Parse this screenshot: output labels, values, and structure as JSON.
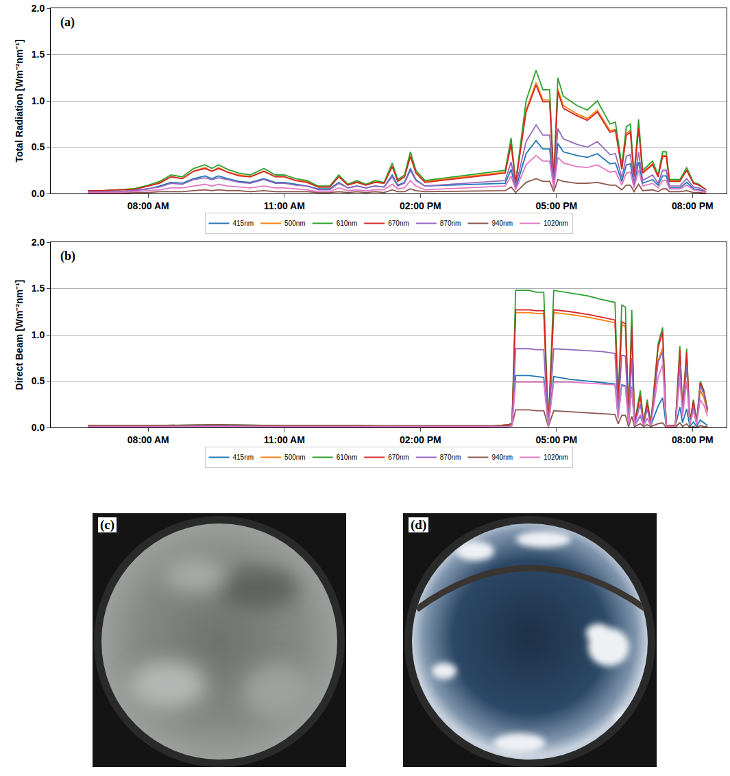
{
  "chart_data": [
    {
      "type": "line",
      "panel_label": "(a)",
      "y_label": "Total Radiation [Wm⁻²nm⁻¹]",
      "xlim": [
        5.85,
        20.75
      ],
      "ylim": [
        0,
        2
      ],
      "xticks": [
        {
          "value": 8,
          "label": "08:00 AM"
        },
        {
          "value": 11,
          "label": "11:00 AM"
        },
        {
          "value": 14,
          "label": "02:00 PM"
        },
        {
          "value": 17,
          "label": "05:00 PM"
        },
        {
          "value": 20,
          "label": "08:00 PM"
        }
      ],
      "yticks": [
        {
          "value": 0,
          "label": "0.0"
        },
        0.5,
        {
          "value": 1,
          "label": "1.0"
        },
        1.5,
        {
          "value": 2,
          "label": "2.0"
        }
      ],
      "grid": "y",
      "legend": "bottom",
      "x": [
        6.67,
        7.0,
        7.33,
        7.67,
        8.0,
        8.25,
        8.5,
        8.75,
        9.0,
        9.25,
        9.4,
        9.55,
        9.75,
        10.0,
        10.25,
        10.55,
        10.8,
        11.0,
        11.25,
        11.5,
        11.75,
        12.0,
        12.2,
        12.4,
        12.6,
        12.8,
        13.0,
        13.2,
        13.38,
        13.5,
        13.65,
        13.78,
        13.9,
        14.1,
        15.87,
        16.0,
        16.1,
        16.33,
        16.55,
        16.7,
        16.85,
        16.94,
        17.03,
        17.15,
        17.45,
        17.68,
        17.9,
        18.18,
        18.3,
        18.44,
        18.54,
        18.63,
        18.71,
        18.81,
        18.9,
        19.12,
        19.24,
        19.34,
        19.42,
        19.49,
        19.72,
        19.87,
        20.02,
        20.14,
        20.3
      ],
      "series": [
        {
          "name": "415nm",
          "color": "#1f77b4",
          "values": [
            0.02,
            0.02,
            0.02,
            0.03,
            0.05,
            0.08,
            0.12,
            0.11,
            0.16,
            0.19,
            0.16,
            0.19,
            0.16,
            0.13,
            0.12,
            0.16,
            0.12,
            0.12,
            0.1,
            0.08,
            0.05,
            0.05,
            0.12,
            0.06,
            0.08,
            0.06,
            0.08,
            0.07,
            0.2,
            0.09,
            0.12,
            0.27,
            0.15,
            0.08,
            0.11,
            0.26,
            0.05,
            0.43,
            0.57,
            0.48,
            0.48,
            0.06,
            0.54,
            0.45,
            0.41,
            0.39,
            0.43,
            0.32,
            0.33,
            0.13,
            0.31,
            0.32,
            0.09,
            0.34,
            0.11,
            0.15,
            0.09,
            0.19,
            0.19,
            0.06,
            0.06,
            0.12,
            0.05,
            0.04,
            0.02
          ]
        },
        {
          "name": "500nm",
          "color": "#ff7f0e",
          "values": [
            0.03,
            0.03,
            0.04,
            0.05,
            0.08,
            0.12,
            0.18,
            0.16,
            0.24,
            0.28,
            0.24,
            0.28,
            0.23,
            0.2,
            0.18,
            0.24,
            0.18,
            0.18,
            0.14,
            0.13,
            0.07,
            0.07,
            0.18,
            0.09,
            0.13,
            0.09,
            0.13,
            0.11,
            0.3,
            0.14,
            0.18,
            0.41,
            0.23,
            0.13,
            0.23,
            0.54,
            0.11,
            0.9,
            1.2,
            1.01,
            1.01,
            0.14,
            1.13,
            0.95,
            0.86,
            0.81,
            0.9,
            0.68,
            0.69,
            0.27,
            0.65,
            0.68,
            0.18,
            0.72,
            0.23,
            0.32,
            0.18,
            0.41,
            0.41,
            0.14,
            0.14,
            0.25,
            0.11,
            0.09,
            0.04
          ]
        },
        {
          "name": "610nm",
          "color": "#2ca02c",
          "values": [
            0.03,
            0.03,
            0.04,
            0.05,
            0.09,
            0.13,
            0.2,
            0.18,
            0.27,
            0.31,
            0.27,
            0.31,
            0.26,
            0.22,
            0.2,
            0.27,
            0.2,
            0.2,
            0.16,
            0.14,
            0.08,
            0.08,
            0.2,
            0.1,
            0.14,
            0.1,
            0.14,
            0.12,
            0.33,
            0.15,
            0.2,
            0.45,
            0.25,
            0.14,
            0.25,
            0.6,
            0.12,
            1.0,
            1.33,
            1.12,
            1.12,
            0.15,
            1.25,
            1.05,
            0.95,
            0.9,
            1.0,
            0.75,
            0.77,
            0.3,
            0.72,
            0.75,
            0.2,
            0.8,
            0.25,
            0.35,
            0.2,
            0.45,
            0.45,
            0.15,
            0.15,
            0.28,
            0.12,
            0.1,
            0.04
          ]
        },
        {
          "name": "670nm",
          "color": "#d62728",
          "values": [
            0.03,
            0.03,
            0.04,
            0.04,
            0.08,
            0.11,
            0.18,
            0.16,
            0.24,
            0.27,
            0.24,
            0.27,
            0.23,
            0.19,
            0.18,
            0.24,
            0.18,
            0.18,
            0.14,
            0.12,
            0.07,
            0.07,
            0.18,
            0.09,
            0.12,
            0.09,
            0.12,
            0.11,
            0.29,
            0.13,
            0.18,
            0.4,
            0.22,
            0.12,
            0.22,
            0.53,
            0.11,
            0.88,
            1.17,
            0.99,
            0.99,
            0.13,
            1.1,
            0.92,
            0.84,
            0.79,
            0.88,
            0.66,
            0.68,
            0.26,
            0.63,
            0.66,
            0.18,
            0.7,
            0.22,
            0.31,
            0.18,
            0.4,
            0.4,
            0.13,
            0.13,
            0.25,
            0.11,
            0.09,
            0.04
          ]
        },
        {
          "name": "870nm",
          "color": "#9467bd",
          "values": [
            0.02,
            0.02,
            0.02,
            0.03,
            0.05,
            0.07,
            0.11,
            0.1,
            0.15,
            0.17,
            0.15,
            0.17,
            0.15,
            0.12,
            0.11,
            0.15,
            0.11,
            0.11,
            0.09,
            0.08,
            0.04,
            0.04,
            0.11,
            0.06,
            0.08,
            0.06,
            0.08,
            0.07,
            0.18,
            0.08,
            0.11,
            0.25,
            0.14,
            0.08,
            0.14,
            0.34,
            0.07,
            0.56,
            0.74,
            0.63,
            0.63,
            0.08,
            0.7,
            0.59,
            0.53,
            0.5,
            0.56,
            0.42,
            0.43,
            0.17,
            0.4,
            0.42,
            0.11,
            0.45,
            0.14,
            0.2,
            0.11,
            0.25,
            0.25,
            0.08,
            0.08,
            0.16,
            0.07,
            0.06,
            0.02
          ]
        },
        {
          "name": "940nm",
          "color": "#8c564b",
          "values": [
            0,
            0,
            0,
            0.01,
            0.01,
            0.02,
            0.02,
            0.02,
            0.03,
            0.04,
            0.03,
            0.04,
            0.03,
            0.03,
            0.02,
            0.03,
            0.02,
            0.02,
            0.02,
            0.02,
            0.01,
            0.01,
            0.02,
            0.01,
            0.02,
            0.01,
            0.02,
            0.01,
            0.04,
            0.02,
            0.02,
            0.05,
            0.03,
            0.02,
            0.03,
            0.07,
            0.01,
            0.12,
            0.16,
            0.13,
            0.13,
            0.02,
            0.15,
            0.13,
            0.11,
            0.11,
            0.12,
            0.09,
            0.09,
            0.04,
            0.09,
            0.09,
            0.02,
            0.1,
            0.03,
            0.04,
            0.02,
            0.05,
            0.05,
            0.02,
            0.02,
            0.03,
            0.01,
            0.01,
            0
          ]
        },
        {
          "name": "1020nm",
          "color": "#e377c2",
          "values": [
            0.01,
            0.01,
            0.01,
            0.02,
            0.03,
            0.04,
            0.06,
            0.06,
            0.08,
            0.1,
            0.08,
            0.1,
            0.08,
            0.07,
            0.06,
            0.08,
            0.06,
            0.06,
            0.05,
            0.04,
            0.02,
            0.02,
            0.06,
            0.03,
            0.04,
            0.03,
            0.04,
            0.04,
            0.1,
            0.05,
            0.06,
            0.14,
            0.08,
            0.04,
            0.08,
            0.19,
            0.04,
            0.31,
            0.41,
            0.35,
            0.35,
            0.05,
            0.39,
            0.33,
            0.29,
            0.28,
            0.31,
            0.23,
            0.24,
            0.09,
            0.22,
            0.23,
            0.06,
            0.25,
            0.08,
            0.11,
            0.06,
            0.14,
            0.14,
            0.05,
            0.05,
            0.09,
            0.04,
            0.03,
            0.01
          ]
        }
      ]
    },
    {
      "type": "line",
      "panel_label": "(b)",
      "y_label": "Direct Beam [Wm⁻²nm⁻¹]",
      "xlim": [
        5.85,
        20.75
      ],
      "ylim": [
        0,
        2
      ],
      "xticks": [
        {
          "value": 8,
          "label": "08:00 AM"
        },
        {
          "value": 11,
          "label": "11:00 AM"
        },
        {
          "value": 14,
          "label": "02:00 PM"
        },
        {
          "value": 17,
          "label": "05:00 PM"
        },
        {
          "value": 20,
          "label": "08:00 PM"
        }
      ],
      "yticks": [
        {
          "value": 0,
          "label": "0.0"
        },
        0.5,
        {
          "value": 1,
          "label": "1.0"
        },
        1.5,
        {
          "value": 2,
          "label": "2.0"
        }
      ],
      "grid": "y",
      "legend": "bottom",
      "x": [
        6.67,
        8.0,
        9.5,
        11.0,
        12.5,
        14.0,
        15.5,
        15.95,
        16.02,
        16.1,
        16.4,
        16.55,
        16.72,
        16.82,
        16.94,
        17.3,
        17.7,
        18.0,
        18.29,
        18.36,
        18.44,
        18.52,
        18.59,
        18.66,
        18.72,
        18.85,
        18.92,
        19.0,
        19.08,
        19.24,
        19.34,
        19.42,
        19.62,
        19.72,
        19.78,
        19.87,
        19.94,
        20.02,
        20.09,
        20.17,
        20.25,
        20.33
      ],
      "series": [
        {
          "name": "415nm",
          "color": "#1f77b4",
          "values": [
            0.01,
            0.01,
            0.01,
            0.01,
            0.01,
            0.01,
            0.01,
            0.01,
            0.02,
            0.56,
            0.56,
            0.55,
            0.54,
            0.01,
            0.55,
            0.52,
            0.5,
            0.48,
            0.47,
            0.1,
            0.46,
            0.45,
            0.04,
            0.44,
            0.02,
            0.12,
            0.02,
            0.1,
            0.02,
            0.23,
            0.32,
            0.01,
            0.01,
            0.22,
            0.05,
            0.2,
            0.01,
            0.06,
            0.01,
            0.08,
            0.05,
            0.02
          ]
        },
        {
          "name": "500nm",
          "color": "#ff7f0e",
          "values": [
            0.02,
            0.02,
            0.02,
            0.02,
            0.02,
            0.01,
            0.01,
            0.03,
            0.04,
            1.24,
            1.24,
            1.23,
            1.23,
            0.02,
            1.24,
            1.22,
            1.19,
            1.16,
            1.13,
            0.25,
            1.11,
            1.09,
            0.08,
            1.07,
            0.04,
            0.34,
            0.04,
            0.25,
            0.04,
            0.72,
            0.86,
            0.02,
            0.02,
            0.7,
            0.16,
            0.68,
            0.04,
            0.24,
            0.04,
            0.4,
            0.32,
            0.16
          ]
        },
        {
          "name": "610nm",
          "color": "#2ca02c",
          "values": [
            0.02,
            0.02,
            0.03,
            0.02,
            0.02,
            0.01,
            0.01,
            0.03,
            0.05,
            1.48,
            1.48,
            1.46,
            1.46,
            0.02,
            1.48,
            1.45,
            1.42,
            1.38,
            1.35,
            0.3,
            1.32,
            1.3,
            0.1,
            1.27,
            0.05,
            0.4,
            0.05,
            0.3,
            0.05,
            0.9,
            1.08,
            0.02,
            0.02,
            0.88,
            0.2,
            0.85,
            0.05,
            0.3,
            0.05,
            0.5,
            0.4,
            0.2
          ]
        },
        {
          "name": "670nm",
          "color": "#d62728",
          "values": [
            0.02,
            0.02,
            0.02,
            0.02,
            0.02,
            0.01,
            0.01,
            0.03,
            0.04,
            1.27,
            1.27,
            1.26,
            1.26,
            0.02,
            1.27,
            1.25,
            1.22,
            1.19,
            1.16,
            0.26,
            1.14,
            1.12,
            0.09,
            1.09,
            0.04,
            0.34,
            0.04,
            0.26,
            0.04,
            0.86,
            1.03,
            0.02,
            0.02,
            0.84,
            0.19,
            0.81,
            0.05,
            0.29,
            0.05,
            0.48,
            0.38,
            0.19
          ]
        },
        {
          "name": "870nm",
          "color": "#9467bd",
          "values": [
            0.01,
            0.01,
            0.02,
            0.01,
            0.01,
            0.01,
            0.01,
            0.02,
            0.03,
            0.85,
            0.85,
            0.84,
            0.84,
            0.01,
            0.85,
            0.84,
            0.83,
            0.82,
            0.8,
            0.17,
            0.78,
            0.77,
            0.06,
            0.75,
            0.03,
            0.25,
            0.03,
            0.2,
            0.03,
            0.7,
            0.82,
            0.01,
            0.01,
            0.68,
            0.15,
            0.66,
            0.04,
            0.22,
            0.04,
            0.45,
            0.36,
            0.18
          ]
        },
        {
          "name": "940nm",
          "color": "#8c564b",
          "values": [
            0.02,
            0.02,
            0.03,
            0.02,
            0.02,
            0.02,
            0.02,
            0.02,
            0.03,
            0.19,
            0.19,
            0.18,
            0.18,
            0.01,
            0.18,
            0.17,
            0.16,
            0.15,
            0.14,
            0.04,
            0.13,
            0.13,
            0.01,
            0.12,
            0.01,
            0.04,
            0.01,
            0.03,
            0.01,
            0.04,
            0.05,
            0,
            0,
            0.05,
            0.01,
            0.04,
            0,
            0.01,
            0,
            0.02,
            0.01,
            0.01
          ]
        },
        {
          "name": "1020nm",
          "color": "#e377c2",
          "values": [
            0.01,
            0.01,
            0.01,
            0.01,
            0.01,
            0.01,
            0.01,
            0.01,
            0.02,
            0.49,
            0.49,
            0.49,
            0.49,
            0.01,
            0.49,
            0.49,
            0.48,
            0.47,
            0.46,
            0.1,
            0.45,
            0.44,
            0.03,
            0.43,
            0.02,
            0.14,
            0.02,
            0.1,
            0.02,
            0.54,
            0.68,
            0.01,
            0.01,
            0.53,
            0.12,
            0.5,
            0.03,
            0.18,
            0.03,
            0.3,
            0.24,
            0.12
          ]
        }
      ]
    }
  ],
  "images": [
    {
      "label": "(c)"
    },
    {
      "label": "(d)"
    }
  ]
}
